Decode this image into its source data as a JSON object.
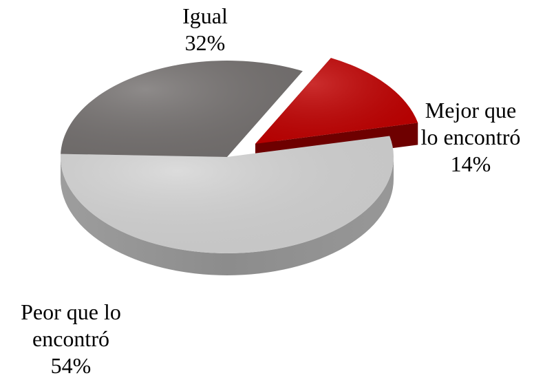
{
  "chart_data": {
    "type": "pie",
    "variant": "3d-exploded",
    "slices": [
      {
        "category": "Mejor que lo encontró",
        "label_lines": [
          "Mejor que",
          "lo encontró"
        ],
        "value": 14,
        "value_label": "14%",
        "color": "#c00000",
        "side_color": "#6e0000",
        "exploded": true
      },
      {
        "category": "Peor que lo encontró",
        "label_lines": [
          "Peor que lo",
          "encontró"
        ],
        "value": 54,
        "value_label": "54%",
        "color": "#d4d4d4",
        "side_color": "#8c8c8c",
        "exploded": false
      },
      {
        "category": "Igual",
        "label_lines": [
          "Igual"
        ],
        "value": 32,
        "value_label": "32%",
        "color": "#757170",
        "side_color": "#4a4746",
        "exploded": false
      }
    ],
    "title": "",
    "legend": "none"
  }
}
